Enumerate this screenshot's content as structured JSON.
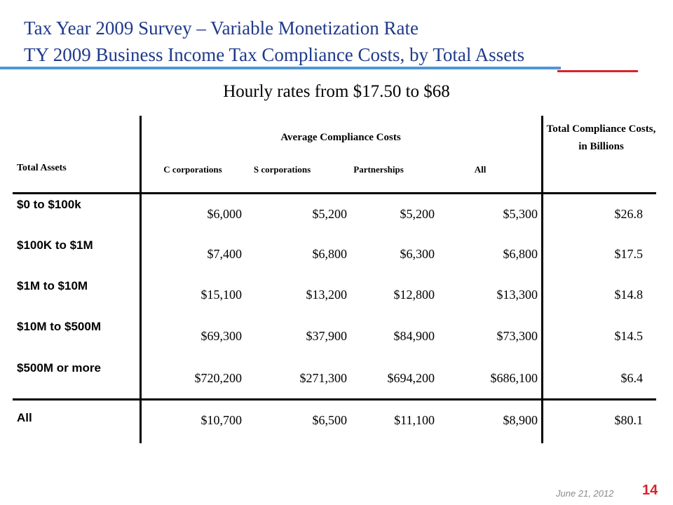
{
  "header": {
    "title_line1": "Tax Year 2009 Survey – Variable Monetization Rate",
    "title_line2": "TY 2009 Business Income Tax Compliance Costs, by Total Assets",
    "subtitle": "Hourly rates from $17.50 to $68"
  },
  "colors": {
    "title": "#1f3a8a",
    "rule_blue": "#4f97d6",
    "rule_red": "#d8232a",
    "page_number": "#d8232a"
  },
  "table": {
    "row_header_label": "Total Assets",
    "group_header": "Average Compliance Costs",
    "columns": [
      "C corporations",
      "S corporations",
      "Partnerships",
      "All"
    ],
    "total_header": "Total Compliance Costs, in Billions",
    "rows": [
      {
        "label": "$0 to $100k",
        "c": "$6,000",
        "s": "$5,200",
        "p": "$5,200",
        "all": "$5,300",
        "total": "$26.8"
      },
      {
        "label": "$100K to $1M",
        "c": "$7,400",
        "s": "$6,800",
        "p": "$6,300",
        "all": "$6,800",
        "total": "$17.5"
      },
      {
        "label": "$1M to $10M",
        "c": "$15,100",
        "s": "$13,200",
        "p": "$12,800",
        "all": "$13,300",
        "total": "$14.8"
      },
      {
        "label": "$10M to $500M",
        "c": "$69,300",
        "s": "$37,900",
        "p": "$84,900",
        "all": "$73,300",
        "total": "$14.5"
      },
      {
        "label": "$500M or more",
        "c": "$720,200",
        "s": "$271,300",
        "p": "$694,200",
        "all": "$686,100",
        "total": "$6.4"
      },
      {
        "label": "All",
        "c": "$10,700",
        "s": "$6,500",
        "p": "$11,100",
        "all": "$8,900",
        "total": "$80.1"
      }
    ]
  },
  "footer": {
    "date": "June 21, 2012",
    "page_number": "14"
  }
}
